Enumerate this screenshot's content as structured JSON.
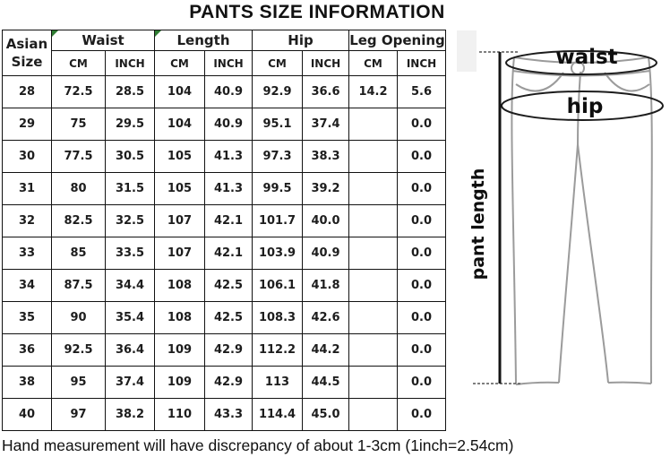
{
  "title": "PANTS SIZE INFORMATION",
  "note": "Hand measurement will have discrepancy of about 1-3cm (1inch=2.54cm)",
  "table": {
    "corner_header": "Asian Size",
    "groups": [
      {
        "label": "Waist",
        "flag": true
      },
      {
        "label": "Length",
        "flag": true
      },
      {
        "label": "Hip",
        "flag": false
      },
      {
        "label": "Leg Opening",
        "flag": false
      }
    ],
    "unit_headers": [
      "CM",
      "INCH"
    ],
    "rows": [
      [
        "28",
        "72.5",
        "28.5",
        "104",
        "40.9",
        "92.9",
        "36.6",
        "14.2",
        "5.6"
      ],
      [
        "29",
        "75",
        "29.5",
        "104",
        "40.9",
        "95.1",
        "37.4",
        "",
        "0.0"
      ],
      [
        "30",
        "77.5",
        "30.5",
        "105",
        "41.3",
        "97.3",
        "38.3",
        "",
        "0.0"
      ],
      [
        "31",
        "80",
        "31.5",
        "105",
        "41.3",
        "99.5",
        "39.2",
        "",
        "0.0"
      ],
      [
        "32",
        "82.5",
        "32.5",
        "107",
        "42.1",
        "101.7",
        "40.0",
        "",
        "0.0"
      ],
      [
        "33",
        "85",
        "33.5",
        "107",
        "42.1",
        "103.9",
        "40.9",
        "",
        "0.0"
      ],
      [
        "34",
        "87.5",
        "34.4",
        "108",
        "42.5",
        "106.1",
        "41.8",
        "",
        "0.0"
      ],
      [
        "35",
        "90",
        "35.4",
        "108",
        "42.5",
        "108.3",
        "42.6",
        "",
        "0.0"
      ],
      [
        "36",
        "92.5",
        "36.4",
        "109",
        "42.9",
        "112.2",
        "44.2",
        "",
        "0.0"
      ],
      [
        "38",
        "95",
        "37.4",
        "109",
        "42.9",
        "113",
        "44.5",
        "",
        "0.0"
      ],
      [
        "40",
        "97",
        "38.2",
        "110",
        "43.3",
        "114.4",
        "45.0",
        "",
        "0.0"
      ]
    ]
  },
  "diagram": {
    "waist_label": "waist",
    "hip_label": "hip",
    "length_label": "pant length"
  },
  "colors": {
    "flag_green": "#2f7d32",
    "pants_outline": "#9b9b9b",
    "measure_line": "#141414"
  }
}
